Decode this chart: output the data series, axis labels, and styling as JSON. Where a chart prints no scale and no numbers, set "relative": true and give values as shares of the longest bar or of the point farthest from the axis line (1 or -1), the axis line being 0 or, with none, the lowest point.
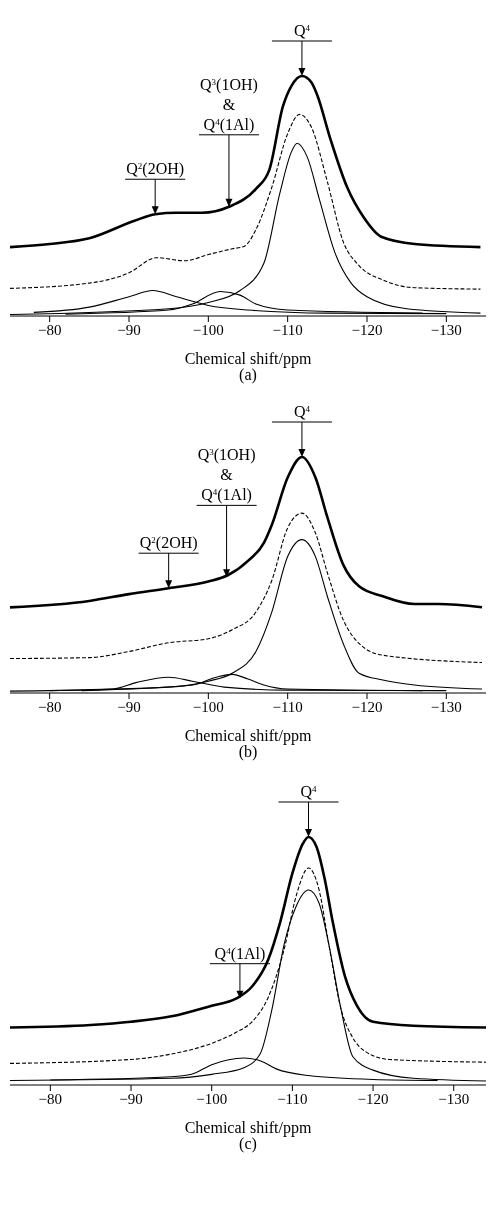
{
  "chart_data": [
    {
      "type": "line",
      "title": "(a)",
      "xlabel": "Chemical shift/ppm",
      "relative": true,
      "xlim": [
        -75,
        -135
      ],
      "xticks": [
        -80,
        -90,
        -100,
        -110,
        -120,
        -130
      ],
      "series": [
        {
          "color": "#000000",
          "x": [
            -75,
            -80,
            -85,
            -90.7,
            -93.3,
            -96,
            -99.2,
            -102.6,
            -106,
            -107.7,
            -109.4,
            -110.5,
            -111.8,
            -113,
            -113.7,
            -115.4,
            -117.5,
            -119.6,
            -121.8,
            -126,
            -134.3
          ],
          "values": [
            0.287,
            0.3,
            0.324,
            0.397,
            0.424,
            0.43,
            0.43,
            0.455,
            0.53,
            0.61,
            0.873,
            0.96,
            1,
            0.973,
            0.923,
            0.736,
            0.536,
            0.41,
            0.33,
            0.3,
            0.287
          ]
        },
        {
          "color": "#000000",
          "line_style": "dashed",
          "x": [
            -75,
            -85,
            -90,
            -93.5,
            -97,
            -100,
            -103,
            -104.5,
            -106,
            -108,
            -110,
            -111.5,
            -113,
            -115,
            -117,
            -119,
            -122,
            -126,
            -134.3
          ],
          "values": [
            0.115,
            0.137,
            0.18,
            0.243,
            0.23,
            0.256,
            0.28,
            0.29,
            0.36,
            0.536,
            0.76,
            0.84,
            0.786,
            0.56,
            0.31,
            0.21,
            0.15,
            0.118,
            0.112
          ]
        },
        {
          "color": "#000000",
          "x": [
            -75,
            -95,
            -100,
            -104,
            -107,
            -109,
            -110.5,
            -111.2,
            -112.5,
            -114,
            -116,
            -118,
            -120,
            -125,
            -134.3
          ],
          "values": [
            0.006,
            0.03,
            0.056,
            0.106,
            0.22,
            0.51,
            0.686,
            0.72,
            0.66,
            0.486,
            0.26,
            0.137,
            0.08,
            0.03,
            0.012
          ]
        },
        {
          "color": "#000000",
          "x": [
            -78,
            -85,
            -90,
            -93,
            -96,
            -100,
            -105,
            -115,
            -130
          ],
          "values": [
            0.015,
            0.037,
            0.08,
            0.106,
            0.08,
            0.044,
            0.025,
            0.012,
            0.01
          ]
        },
        {
          "color": "#000000",
          "x": [
            -82,
            -95,
            -98,
            -101.5,
            -104,
            -106,
            -110,
            -127
          ],
          "values": [
            0.008,
            0.025,
            0.05,
            0.102,
            0.087,
            0.05,
            0.025,
            0.012
          ]
        }
      ],
      "annotations": [
        {
          "text": "Q$^{4}$",
          "x": -111.8,
          "y": 1
        },
        "Q$^{3}$(1OH)",
        "&",
        {
          "text": "Q$^{4}$(1Al)",
          "x": -102.6,
          "y": 0.455
        },
        {
          "text": "Q$^{2}$(2OH)",
          "x": -93.3,
          "y": 0.424
        }
      ]
    },
    {
      "type": "line",
      "title": "(b)",
      "xlabel": "Chemical shift/ppm",
      "relative": true,
      "xlim": [
        -75,
        -135
      ],
      "xticks": [
        -80,
        -90,
        -100,
        -110,
        -120,
        -130
      ],
      "series": [
        {
          "color": "#000000",
          "x": [
            -75,
            -85,
            -90,
            -95,
            -100,
            -102.5,
            -105,
            -107,
            -108,
            -110,
            -111.8,
            -113.5,
            -115,
            -117,
            -119,
            -122,
            -126,
            -129,
            -134.5
          ],
          "values": [
            0.363,
            0.39,
            0.419,
            0.444,
            0.472,
            0.5,
            0.56,
            0.636,
            0.712,
            0.913,
            1,
            0.913,
            0.745,
            0.544,
            0.452,
            0.41,
            0.377,
            0.377,
            0.363
          ]
        },
        {
          "color": "#000000",
          "line_style": "dashed",
          "x": [
            -75,
            -85,
            -90,
            -95,
            -100,
            -103,
            -106,
            -108,
            -110,
            -111.8,
            -113.5,
            -115,
            -117,
            -119,
            -122,
            -134.5
          ],
          "values": [
            0.146,
            0.15,
            0.176,
            0.213,
            0.23,
            0.268,
            0.343,
            0.477,
            0.7,
            0.762,
            0.678,
            0.51,
            0.31,
            0.21,
            0.16,
            0.129
          ]
        },
        {
          "color": "#000000",
          "x": [
            -75,
            -95,
            -100,
            -103,
            -106,
            -108,
            -110,
            -111.8,
            -113.5,
            -115,
            -117,
            -119,
            -122,
            -126,
            -134.5
          ],
          "values": [
            0.008,
            0.025,
            0.05,
            0.084,
            0.176,
            0.343,
            0.578,
            0.65,
            0.578,
            0.41,
            0.21,
            0.084,
            0.055,
            0.034,
            0.017
          ]
        },
        {
          "color": "#000000",
          "x": [
            -80,
            -88,
            -91,
            -95,
            -98,
            -102,
            -110,
            -130
          ],
          "values": [
            0.01,
            0.017,
            0.045,
            0.067,
            0.05,
            0.025,
            0.012,
            0.01
          ]
        },
        {
          "color": "#000000",
          "x": [
            -84,
            -98,
            -101,
            -103,
            -105,
            -107,
            -110,
            -127
          ],
          "values": [
            0.01,
            0.034,
            0.067,
            0.079,
            0.059,
            0.034,
            0.017,
            0.01
          ]
        }
      ],
      "annotations": [
        {
          "text": "Q$^{4}$",
          "x": -111.8,
          "y": 1
        },
        "Q$^{3}$(1OH)",
        "&",
        {
          "text": "Q$^{4}$(1Al)",
          "x": -102.3,
          "y": 0.49
        },
        {
          "text": "Q$^{2}$(2OH)",
          "x": -95,
          "y": 0.444
        }
      ]
    },
    {
      "type": "line",
      "title": "(c)",
      "xlabel": "Chemical shift/ppm",
      "relative": true,
      "xlim": [
        -75,
        -134
      ],
      "xticks": [
        -80,
        -90,
        -100,
        -110,
        -120,
        -130
      ],
      "series": [
        {
          "color": "#000000",
          "x": [
            -75,
            -85,
            -90,
            -95,
            -100,
            -103,
            -105,
            -107,
            -108.5,
            -110,
            -111.3,
            -112,
            -113,
            -114,
            -115,
            -116.5,
            -118,
            -120,
            -125,
            -134
          ],
          "values": [
            0.232,
            0.242,
            0.255,
            0.277,
            0.32,
            0.348,
            0.397,
            0.505,
            0.658,
            0.853,
            0.973,
            1,
            0.96,
            0.832,
            0.658,
            0.44,
            0.32,
            0.255,
            0.239,
            0.232
          ]
        },
        {
          "color": "#000000",
          "line_style": "dashed",
          "x": [
            -75,
            -90,
            -95,
            -100,
            -103,
            -105,
            -107,
            -109,
            -110.5,
            -112,
            -113.3,
            -114.5,
            -116,
            -117.5,
            -119,
            -122,
            -134
          ],
          "values": [
            0.087,
            0.103,
            0.125,
            0.168,
            0.212,
            0.255,
            0.353,
            0.55,
            0.766,
            0.875,
            0.788,
            0.57,
            0.31,
            0.19,
            0.136,
            0.103,
            0.092
          ]
        },
        {
          "color": "#000000",
          "x": [
            -75,
            -95,
            -100,
            -104,
            -106,
            -107.5,
            -109,
            -110.5,
            -112,
            -113.3,
            -114.5,
            -116,
            -117.5,
            -120,
            -125,
            -134
          ],
          "values": [
            0.018,
            0.027,
            0.043,
            0.07,
            0.125,
            0.31,
            0.57,
            0.723,
            0.786,
            0.734,
            0.57,
            0.31,
            0.114,
            0.06,
            0.027,
            0.016
          ]
        },
        {
          "color": "#000000",
          "x": [
            -80,
            -95,
            -97.5,
            -100,
            -104,
            -106,
            -108,
            -112,
            -120,
            -128
          ],
          "values": [
            0.02,
            0.033,
            0.043,
            0.082,
            0.109,
            0.098,
            0.065,
            0.038,
            0.022,
            0.018
          ]
        }
      ],
      "annotations": [
        {
          "text": "Q$^{4}$",
          "x": -112,
          "y": 1
        },
        {
          "text": "Q$^{4}$(1Al)",
          "x": -103.5,
          "y": 0.348
        }
      ]
    }
  ]
}
